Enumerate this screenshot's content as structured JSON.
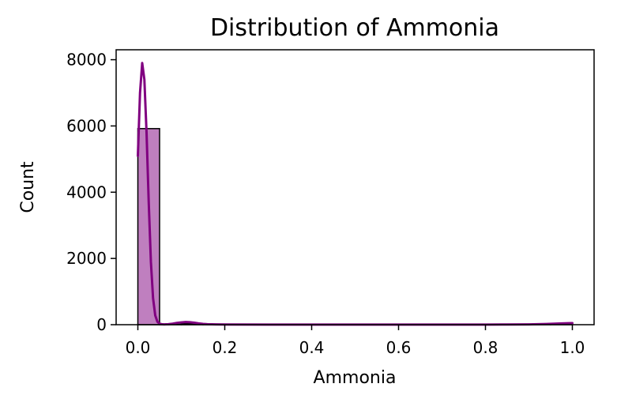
{
  "chart_data": {
    "type": "bar",
    "title": "Distribution of Ammonia",
    "xlabel": "Ammonia",
    "ylabel": "Count",
    "xlim": [
      -0.05,
      1.05
    ],
    "ylim": [
      0,
      8300
    ],
    "x_ticks": [
      0.0,
      0.2,
      0.4,
      0.6,
      0.8,
      1.0
    ],
    "x_tick_labels": [
      "0.0",
      "0.2",
      "0.4",
      "0.6",
      "0.8",
      "1.0"
    ],
    "y_ticks": [
      0,
      2000,
      4000,
      6000,
      8000
    ],
    "y_tick_labels": [
      "0",
      "2000",
      "4000",
      "6000",
      "8000"
    ],
    "bins": [
      {
        "x0": 0.0,
        "x1": 0.05,
        "count": 5920
      },
      {
        "x0": 0.05,
        "x1": 0.1,
        "count": 15
      },
      {
        "x0": 0.1,
        "x1": 0.15,
        "count": 30
      },
      {
        "x0": 0.15,
        "x1": 0.2,
        "count": 12
      },
      {
        "x0": 0.2,
        "x1": 0.25,
        "count": 6
      },
      {
        "x0": 0.25,
        "x1": 0.3,
        "count": 4
      },
      {
        "x0": 0.3,
        "x1": 0.35,
        "count": 3
      },
      {
        "x0": 0.35,
        "x1": 0.4,
        "count": 2
      },
      {
        "x0": 0.4,
        "x1": 0.45,
        "count": 2
      },
      {
        "x0": 0.45,
        "x1": 0.5,
        "count": 2
      },
      {
        "x0": 0.5,
        "x1": 0.55,
        "count": 1
      },
      {
        "x0": 0.55,
        "x1": 0.6,
        "count": 1
      },
      {
        "x0": 0.6,
        "x1": 0.65,
        "count": 1
      },
      {
        "x0": 0.65,
        "x1": 0.7,
        "count": 1
      },
      {
        "x0": 0.7,
        "x1": 0.75,
        "count": 1
      },
      {
        "x0": 0.75,
        "x1": 0.8,
        "count": 1
      },
      {
        "x0": 0.8,
        "x1": 0.85,
        "count": 1
      },
      {
        "x0": 0.85,
        "x1": 0.9,
        "count": 2
      },
      {
        "x0": 0.9,
        "x1": 0.95,
        "count": 3
      },
      {
        "x0": 0.95,
        "x1": 1.0,
        "count": 20
      }
    ],
    "kde": {
      "x": [
        0.0,
        0.005,
        0.01,
        0.015,
        0.02,
        0.025,
        0.03,
        0.035,
        0.04,
        0.045,
        0.05,
        0.055,
        0.06,
        0.07,
        0.08,
        0.09,
        0.1,
        0.11,
        0.12,
        0.13,
        0.14,
        0.15,
        0.16,
        0.18,
        0.2,
        0.3,
        0.4,
        0.5,
        0.6,
        0.7,
        0.8,
        0.85,
        0.9,
        0.94,
        0.97,
        0.99,
        1.0
      ],
      "y": [
        5100,
        7000,
        7900,
        7400,
        5800,
        3700,
        1900,
        800,
        280,
        90,
        30,
        15,
        10,
        15,
        30,
        55,
        70,
        80,
        75,
        60,
        40,
        25,
        15,
        8,
        5,
        3,
        2,
        2,
        2,
        2,
        3,
        5,
        10,
        20,
        35,
        45,
        48
      ]
    },
    "colors": {
      "bar_fill": "#bf7fbf",
      "bar_edge": "#000000",
      "kde_line": "#800080"
    },
    "grid": false,
    "legend": "none"
  }
}
